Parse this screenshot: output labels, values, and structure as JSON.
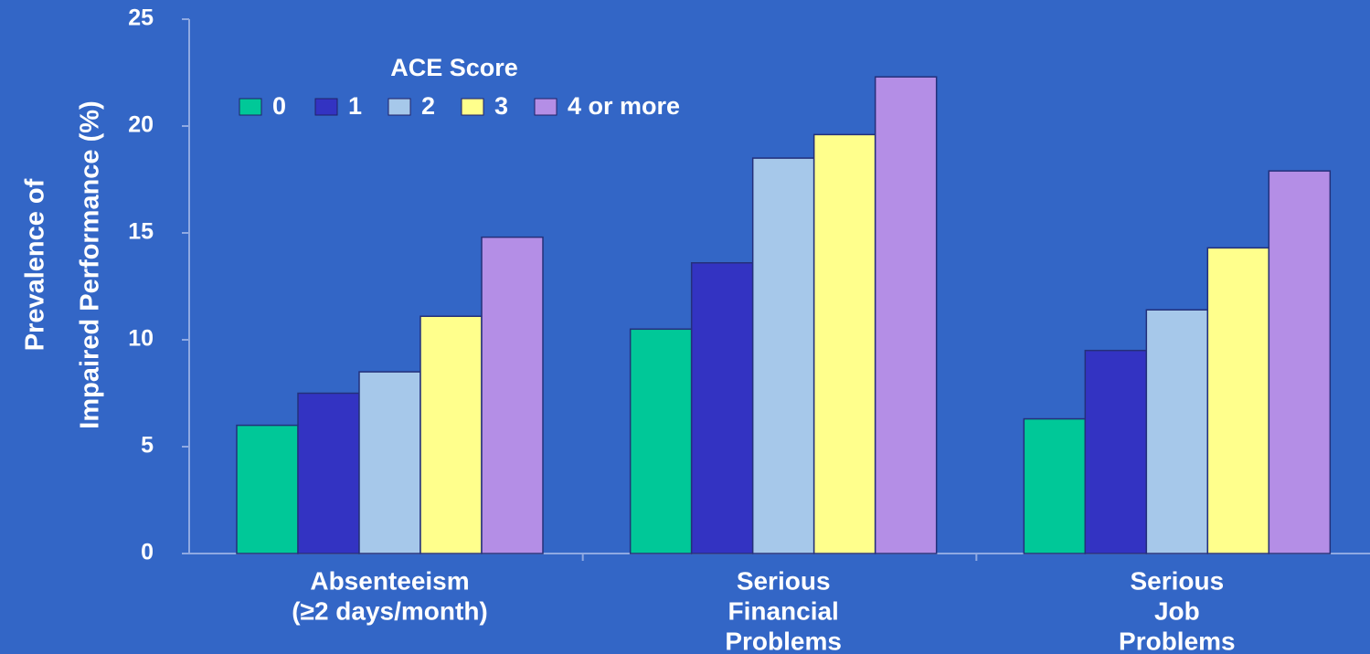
{
  "chart_data": {
    "type": "bar",
    "y_label": [
      "Prevalence of",
      "Impaired Performance (%)"
    ],
    "legend_title": "ACE Score",
    "categories": [
      [
        "Absenteeism",
        "(≥2 days/month)"
      ],
      [
        "Serious",
        "Financial",
        "Problems"
      ],
      [
        "Serious",
        "Job",
        "Problems"
      ]
    ],
    "series": [
      {
        "name": "0",
        "color": "#00c898",
        "values": [
          6.0,
          10.5,
          6.3
        ]
      },
      {
        "name": "1",
        "color": "#3333c2",
        "values": [
          7.5,
          13.6,
          9.5
        ]
      },
      {
        "name": "2",
        "color": "#a6c8ea",
        "values": [
          8.5,
          18.5,
          11.4
        ]
      },
      {
        "name": "3",
        "color": "#ffff8c",
        "values": [
          11.1,
          19.6,
          14.3
        ]
      },
      {
        "name": "4 or more",
        "color": "#b48ee6",
        "values": [
          14.8,
          22.3,
          17.9
        ]
      }
    ],
    "ylim": [
      0,
      25
    ],
    "yticks": [
      0,
      5,
      10,
      15,
      20,
      25
    ]
  }
}
